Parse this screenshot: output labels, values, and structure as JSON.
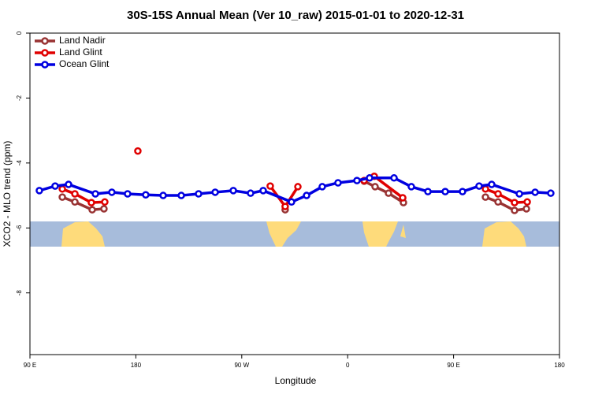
{
  "chart_data": {
    "type": "line",
    "title": "30S-15S Annual Mean (Ver 10_raw)   2015-01-01 to 2020-12-31",
    "xlabel": "Longitude",
    "ylabel": "XCO2 - MLO trend (ppm)",
    "xlim": [
      90,
      540
    ],
    "ylim": [
      -9.9,
      0
    ],
    "xticks": [
      {
        "value": 90,
        "label": "90 E"
      },
      180,
      {
        "value": 270,
        "label": "90 W"
      },
      {
        "value": 360,
        "label": "0"
      },
      {
        "value": 450,
        "label": "90 E"
      },
      {
        "value": 540,
        "label": "180"
      }
    ],
    "yticks": [
      0,
      -2,
      -4,
      -6,
      -8
    ],
    "legend": "upper left",
    "series": [
      {
        "name": "Land Nadir",
        "color": "#993333",
        "x": [
          117.5,
          128.2,
          142.9,
          152.9,
          null,
          306.9,
          null,
          374.0,
          383.3,
          394.7,
          407.4,
          null,
          477.1,
          487.8,
          501.8,
          511.9
        ],
        "values": [
          -5.05,
          -5.2,
          -5.44,
          -5.41,
          null,
          -5.44,
          null,
          -4.56,
          -4.73,
          -4.93,
          -5.22,
          null,
          -5.05,
          -5.2,
          -5.46,
          -5.41
        ]
      },
      {
        "name": "Land Glint",
        "color": "#e00000",
        "x": [
          117.5,
          128.2,
          142.2,
          153.6,
          null,
          181.7,
          null,
          294.2,
          306.9,
          317.7,
          null,
          374.0,
          382.6,
          406.8,
          null,
          477.1,
          487.8,
          501.8,
          512.6
        ],
        "values": [
          -4.8,
          -4.95,
          -5.22,
          -5.2,
          null,
          -3.63,
          null,
          -4.71,
          -5.34,
          -4.73,
          null,
          -4.54,
          -4.41,
          -5.07,
          null,
          -4.8,
          -4.95,
          -5.22,
          -5.2
        ]
      },
      {
        "name": "Ocean Glint",
        "color": "#0000e0",
        "x": [
          98.0,
          111.4,
          122.8,
          145.6,
          159.6,
          173.0,
          188.4,
          203.2,
          218.6,
          233.3,
          247.4,
          262.8,
          277.5,
          288.2,
          312.3,
          325.1,
          338.4,
          351.8,
          367.9,
          378.6,
          399.4,
          414.1,
          428.2,
          442.9,
          457.6,
          471.7,
          482.4,
          505.9,
          519.3,
          532.6
        ],
        "values": [
          -4.85,
          -4.71,
          -4.66,
          -4.95,
          -4.9,
          -4.95,
          -4.98,
          -5.0,
          -5.0,
          -4.95,
          -4.9,
          -4.85,
          -4.93,
          -4.85,
          -5.2,
          -5.0,
          -4.73,
          -4.61,
          -4.54,
          -4.46,
          -4.46,
          -4.73,
          -4.88,
          -4.88,
          -4.88,
          -4.71,
          -4.66,
          -4.95,
          -4.9,
          -4.93
        ]
      }
    ]
  }
}
